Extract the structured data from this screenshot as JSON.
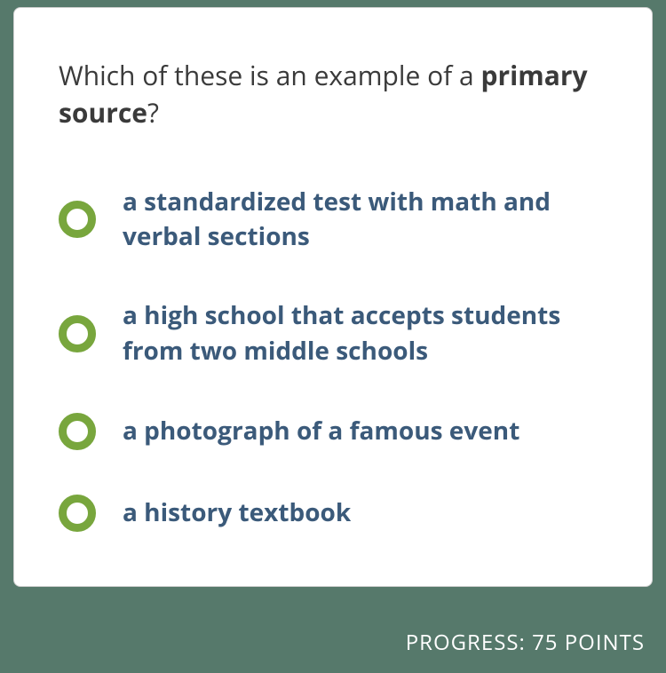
{
  "question": {
    "prefix": "Which of these is an example of a ",
    "bold_term": "primary source",
    "suffix": "?"
  },
  "options": [
    {
      "label": "a standardized test with math and verbal sections"
    },
    {
      "label": "a high school that accepts students from two middle schools"
    },
    {
      "label": "a photograph of a famous event"
    },
    {
      "label": "a history textbook"
    }
  ],
  "progress": {
    "label": "PROGRESS: 75 POINTS"
  },
  "colors": {
    "background": "#56796b",
    "card_background": "#ffffff",
    "question_text": "#3a3a3a",
    "option_text": "#3b5a7a",
    "radio_border": "#78a63d",
    "progress_text": "#ffffff"
  }
}
